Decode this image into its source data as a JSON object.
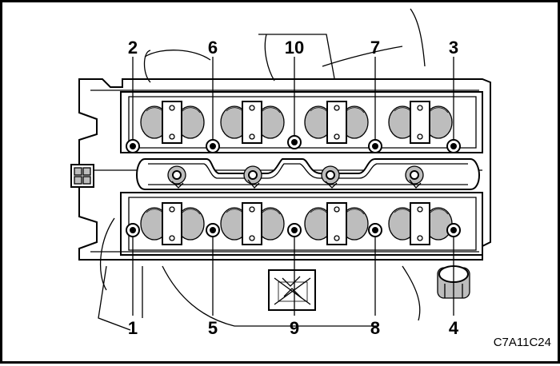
{
  "bolt_labels": {
    "b1": "1",
    "b2": "2",
    "b3": "3",
    "b4": "4",
    "b5": "5",
    "b6": "6",
    "b7": "7",
    "b8": "8",
    "b9": "9",
    "b10": "10"
  },
  "figure_code": "C7A11C24"
}
